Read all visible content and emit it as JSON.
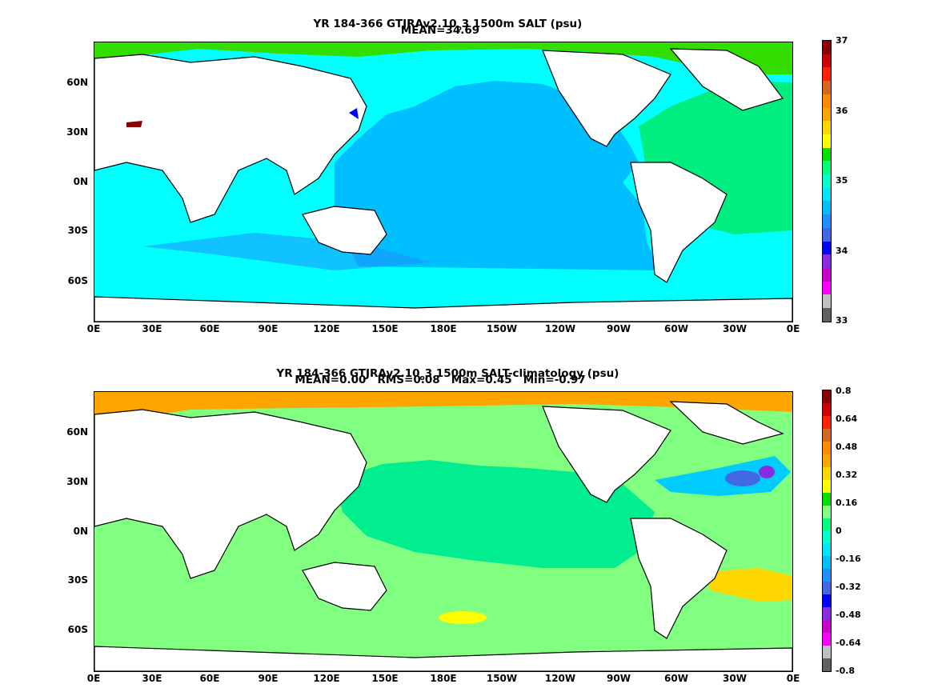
{
  "panels": [
    {
      "title_pre": "YR 184-366 GTJRAv2.10",
      "title_sub": "o",
      "title_post": "3 1500m SALT (psu)",
      "stats": "MEAN=34.69",
      "lat_labels": [
        "60N",
        "30N",
        "0N",
        "30S",
        "60S"
      ],
      "lon_labels": [
        "0E",
        "30E",
        "60E",
        "90E",
        "120E",
        "150E",
        "180E",
        "150W",
        "120W",
        "90W",
        "60W",
        "30W",
        "0E"
      ],
      "colorbar_labels": [
        "37",
        "36",
        "35",
        "34",
        "33"
      ],
      "colorbar_colors": [
        "#8b0000",
        "#cc0000",
        "#ff2000",
        "#d2691e",
        "#ff8c00",
        "#ffa500",
        "#ffd700",
        "#ffff00",
        "#00e000",
        "#00ff7f",
        "#00ffcc",
        "#00e5ff",
        "#00bfff",
        "#1e90ff",
        "#4169e1",
        "#0000ff",
        "#8a2be2",
        "#cc00cc",
        "#ff00ff",
        "#c0c0c0",
        "#606060"
      ]
    },
    {
      "title_pre": "YR 184-366 GTJRAv2.10",
      "title_sub": "o",
      "title_post": "3 1500m SALT-climatology (psu)",
      "stats": "MEAN=0.00   RMS=0.08   Max=0.45   Min=-0.97",
      "lat_labels": [
        "60N",
        "30N",
        "0N",
        "30S",
        "60S"
      ],
      "lon_labels": [
        "0E",
        "30E",
        "60E",
        "90E",
        "120E",
        "150E",
        "180E",
        "150W",
        "120W",
        "90W",
        "60W",
        "30W",
        "0E"
      ],
      "colorbar_labels": [
        "0.8",
        "0.64",
        "0.48",
        "0.32",
        "0.16",
        "0",
        "-0.16",
        "-0.32",
        "-0.48",
        "-0.64",
        "-0.8"
      ],
      "colorbar_colors": [
        "#8b0000",
        "#cc0000",
        "#ff2000",
        "#d2691e",
        "#ff8c00",
        "#ffa500",
        "#ffd700",
        "#ffff00",
        "#00e000",
        "#80ff80",
        "#00ff7f",
        "#00ffcc",
        "#00e5ff",
        "#00bfff",
        "#1e90ff",
        "#4169e1",
        "#0000ff",
        "#8a2be2",
        "#cc00cc",
        "#ff00ff",
        "#c0c0c0",
        "#606060"
      ]
    }
  ],
  "colors": {
    "pacific_salt": "#00bfff",
    "indian_salt": "#00ffff",
    "atlantic_salt": "#00ee80",
    "southern_salt": "#00ffff",
    "arctic_salt": "#33dd00",
    "anom_base": "#80ff80",
    "anom_neg": "#00ee90",
    "land": "#ffffff"
  }
}
